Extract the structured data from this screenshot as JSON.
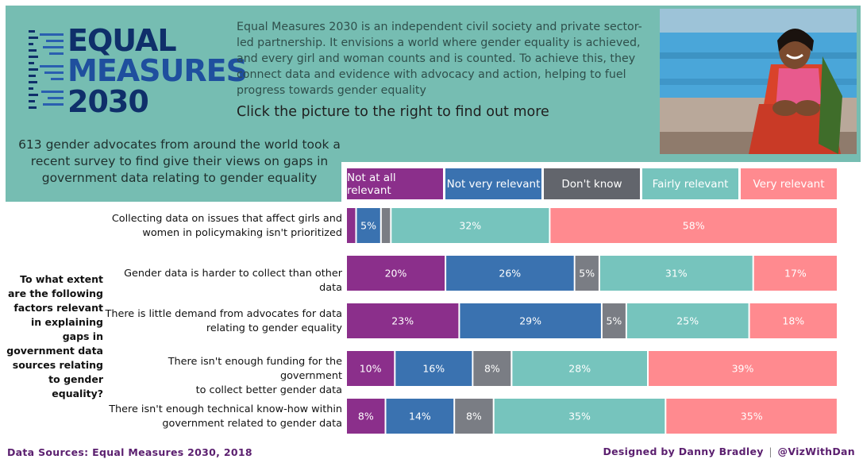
{
  "header": {
    "logo_lines": [
      "EQUAL",
      "MEASURES",
      "2030"
    ],
    "description": "Equal Measures 2030 is an independent civil society and private sector-led partnership. It envisions a world where gender equality is achieved, and every girl and woman counts and is counted. To achieve this, they connect data and evidence with advocacy and action, helping to fuel progress towards gender equality",
    "cta": "Click the picture to the right to find out more",
    "survey_text": "613 gender advocates from around the world took a recent survey to find give their views on gaps in government data relating to gender equality"
  },
  "question": "To what extent are the following factors relevant in explaining gaps in government data sources relating to gender equality?",
  "footer": {
    "sources": "Data Sources: Equal Measures 2030,  2018",
    "designed_by": "Designed by Danny Bradley",
    "separator": "|",
    "handle": "@VizWithDan"
  },
  "colors": {
    "header_bg": "#76bdb2",
    "not_at_all": "#8b2f8b",
    "not_very": "#3a72b0",
    "dont_know": "#7a7d84",
    "fairly": "#76c4bd",
    "very": "#ff8a8f",
    "footer_text": "#5b1f6f"
  },
  "chart_data": {
    "type": "bar",
    "orientation": "horizontal",
    "stacked": true,
    "categories": [
      [
        "Collecting data on issues that affect girls and",
        "women in policymaking isn't prioritized"
      ],
      [
        "Gender data is harder to collect than other data"
      ],
      [
        "There is little demand from advocates for data",
        "relating to gender equality"
      ],
      [
        "There isn't enough funding for the government",
        "to collect better gender data"
      ],
      [
        "There isn't enough technical know-how within",
        "government related to gender data"
      ]
    ],
    "series": [
      {
        "name": "Not at all relevant",
        "color": "#8b2f8b",
        "values": [
          2,
          20,
          23,
          10,
          8
        ],
        "labels": [
          "",
          "20%",
          "23%",
          "10%",
          "8%"
        ]
      },
      {
        "name": "Not very relevant",
        "color": "#3a72b0",
        "values": [
          5,
          26,
          29,
          16,
          14
        ],
        "labels": [
          "5%",
          "26%",
          "29%",
          "16%",
          "14%"
        ]
      },
      {
        "name": "Don't know",
        "color": "#7a7d84",
        "values": [
          2,
          5,
          5,
          8,
          8
        ],
        "labels": [
          "",
          "5%",
          "5%",
          "8%",
          "8%"
        ]
      },
      {
        "name": "Fairly relevant",
        "color": "#76c4bd",
        "values": [
          32,
          31,
          25,
          28,
          35
        ],
        "labels": [
          "32%",
          "31%",
          "25%",
          "28%",
          "35%"
        ]
      },
      {
        "name": "Very relevant",
        "color": "#ff8a8f",
        "values": [
          58,
          17,
          18,
          39,
          35
        ],
        "labels": [
          "58%",
          "17%",
          "18%",
          "39%",
          "35%"
        ]
      }
    ],
    "legend_position": "top",
    "grid": false
  }
}
